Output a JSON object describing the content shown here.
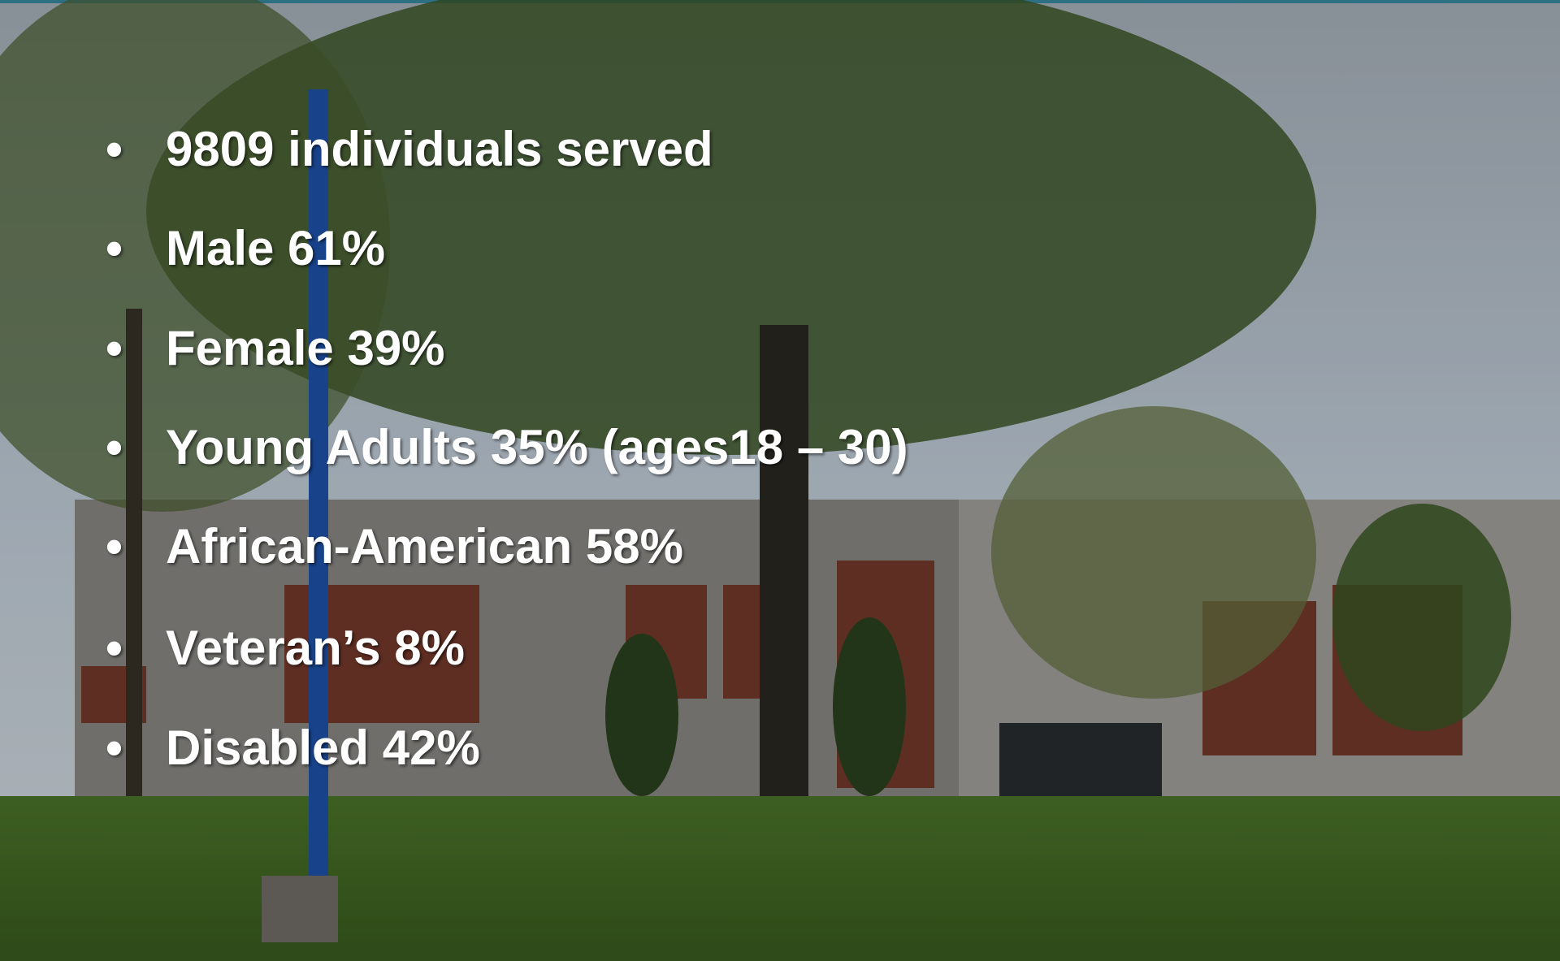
{
  "bullets": [
    "9809 individuals served",
    "Male 61%",
    "Female 39%",
    "Young Adults 35% (ages18 – 30)",
    "African-American 58%",
    "Veteran’s 8%",
    "Disabled 42%"
  ]
}
